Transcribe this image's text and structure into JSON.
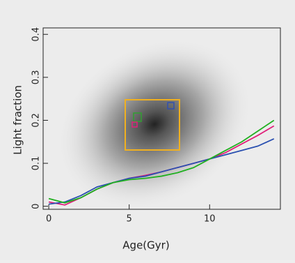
{
  "chart_data": {
    "type": "line",
    "x_label": "Age(Gyr)",
    "y_label": "Light fraction",
    "x": [
      0,
      1,
      2,
      3,
      4,
      5,
      6,
      7,
      8,
      9,
      10,
      11,
      12,
      13,
      14
    ],
    "series": [
      {
        "color": "#e0207a",
        "values": [
          0.01,
          0.003,
          0.02,
          0.04,
          0.055,
          0.065,
          0.072,
          0.08,
          0.09,
          0.1,
          0.11,
          0.125,
          0.145,
          0.165,
          0.187
        ]
      },
      {
        "color": "#2a50b0",
        "values": [
          0.005,
          0.01,
          0.025,
          0.045,
          0.055,
          0.065,
          0.07,
          0.08,
          0.09,
          0.1,
          0.11,
          0.12,
          0.13,
          0.14,
          0.157
        ]
      },
      {
        "color": "#20b020",
        "values": [
          0.018,
          0.008,
          0.02,
          0.04,
          0.055,
          0.062,
          0.065,
          0.07,
          0.078,
          0.09,
          0.11,
          0.13,
          0.15,
          0.175,
          0.2
        ]
      }
    ],
    "xlim": [
      -0.35,
      14.4
    ],
    "ylim": [
      -0.007,
      0.415
    ],
    "xticks": [
      0,
      5,
      10
    ],
    "yticks": [
      0,
      0.1,
      0.2,
      0.3,
      0.4
    ]
  }
}
